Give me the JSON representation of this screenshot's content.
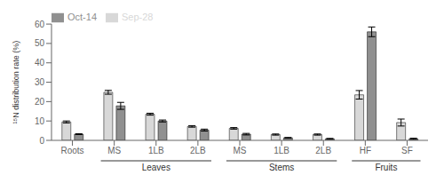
{
  "chart_data": {
    "type": "bar",
    "ylabel": "¹⁵N distribution rate (%)",
    "categories": [
      "Roots",
      "MS",
      "1LB",
      "2LB",
      "MS",
      "1LB",
      "2LB",
      "HF",
      "SF"
    ],
    "series": [
      {
        "name": "Sep-28",
        "color": "#d8d8d8",
        "values": [
          9.5,
          24.8,
          13.5,
          7.2,
          6.2,
          3.0,
          3.0,
          23.5,
          9.2
        ],
        "errors": [
          0.5,
          1.0,
          0.5,
          0.4,
          0.4,
          0.3,
          0.3,
          2.2,
          1.8
        ]
      },
      {
        "name": "Oct-14",
        "color": "#909090",
        "values": [
          3.2,
          17.8,
          10.0,
          5.3,
          3.2,
          1.3,
          0.8,
          56.0,
          0.8
        ],
        "errors": [
          0.2,
          1.8,
          0.5,
          0.5,
          0.4,
          0.2,
          0.2,
          2.5,
          0.3
        ]
      }
    ],
    "ylim": [
      0,
      60
    ],
    "yticks": [
      0,
      10,
      20,
      30,
      40,
      50,
      60
    ],
    "legend": "upper left",
    "annotations": [
      {
        "text": "Leaves",
        "from": 1,
        "to": 3
      },
      {
        "text": "Stems",
        "from": 4,
        "to": 6
      },
      {
        "text": "Fruits",
        "from": 7,
        "to": 8
      }
    ]
  }
}
